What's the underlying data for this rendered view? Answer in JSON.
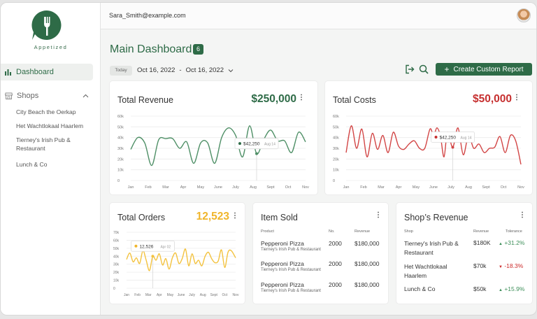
{
  "app": {
    "logo_text": "Appetized"
  },
  "user": {
    "email": "Sara_Smith@example.com"
  },
  "sidebar": {
    "dashboard_label": "Dashboard",
    "shops_label": "Shops",
    "shops": [
      "City Beach the Oerkap",
      "Het Wachtlokaal Haarlem",
      "Tierney's Irish Pub & Restaurant",
      "Lunch & Co"
    ]
  },
  "header": {
    "title": "Main Dashboard",
    "badge": "6",
    "today_label": "Today",
    "date_from": "Oct 16, 2022",
    "date_sep": "-",
    "date_to": "Oct 16, 2022",
    "create_label": "Create Custom Report"
  },
  "colors": {
    "brand": "#2e6b47",
    "revenue": "#4e8f66",
    "costs": "#d24545",
    "orders": "#f3c23e",
    "up": "#3e8f5a",
    "down": "#cc2b2b"
  },
  "cards": {
    "revenue": {
      "title": "Total Revenue",
      "value": "$250,000",
      "tooltip_value": "$42,250",
      "tooltip_date": "Aug 14"
    },
    "costs": {
      "title": "Total Costs",
      "value": "$50,000",
      "tooltip_value": "$42,250",
      "tooltip_date": "Aug 14"
    },
    "orders": {
      "title": "Total Orders",
      "value": "12,523",
      "tooltip_value": "12,526",
      "tooltip_date": "Apr 02"
    },
    "items": {
      "title": "Item Sold",
      "headers": {
        "product": "Product",
        "no": "No.",
        "revenue": "Revenue"
      },
      "rows": [
        {
          "product": "Pepperoni Pizza",
          "shop": "Tierney's Irish Pub & Restaurant",
          "no": "2000",
          "revenue": "$180,000"
        },
        {
          "product": "Pepperoni Pizza",
          "shop": "Tierney's Irish Pub & Restaurant",
          "no": "2000",
          "revenue": "$180,000"
        },
        {
          "product": "Pepperoni Pizza",
          "shop": "Tierney's Irish Pub & Restaurant",
          "no": "2000",
          "revenue": "$180,000"
        }
      ]
    },
    "shop_revenue": {
      "title": "Shop’s Revenue",
      "headers": {
        "shop": "Shop",
        "revenue": "Revenue",
        "tolerance": "Tolerance"
      },
      "rows": [
        {
          "shop": "Tierney's Irish Pub & Restaurant",
          "revenue": "$180K",
          "delta": "+31.2%",
          "dir": "up"
        },
        {
          "shop": "Het Wachtlokaal Haarlem",
          "revenue": "$70k",
          "delta": "-18.3%",
          "dir": "down"
        },
        {
          "shop": "Lunch & Co",
          "revenue": "$50k",
          "delta": "+15.9%",
          "dir": "up"
        }
      ]
    }
  },
  "chart_data": [
    {
      "type": "line",
      "title": "Total Revenue",
      "categories": [
        "Jan",
        "Feb",
        "Mar",
        "Apr",
        "May",
        "June",
        "July",
        "Aug",
        "Sept",
        "Oct",
        "Nov"
      ],
      "yticks": [
        "0",
        "10k",
        "20k",
        "30k",
        "40k",
        "50k",
        "60k"
      ],
      "ylim": [
        0,
        60000
      ],
      "x": [
        0,
        0.4,
        0.8,
        1.2,
        1.6,
        2,
        2.4,
        2.8,
        3.2,
        3.6,
        4,
        4.4,
        4.8,
        5.2,
        5.6,
        6,
        6.4,
        6.8,
        7.2,
        7.6,
        8,
        8.4,
        8.8,
        9.2,
        9.6,
        10
      ],
      "values": [
        29000,
        40000,
        35000,
        14000,
        38000,
        39000,
        39000,
        30000,
        36000,
        16000,
        35000,
        35000,
        16000,
        40000,
        49000,
        42000,
        22000,
        51000,
        25000,
        38000,
        47000,
        37000,
        37000,
        26000,
        45000,
        36000
      ]
    },
    {
      "type": "line",
      "title": "Total Costs",
      "categories": [
        "Jan",
        "Feb",
        "Mar",
        "Apr",
        "May",
        "June",
        "July",
        "Aug",
        "Sept",
        "Oct",
        "Nov"
      ],
      "yticks": [
        "0",
        "10k",
        "20k",
        "30k",
        "40k",
        "50k",
        "60k"
      ],
      "ylim": [
        0,
        60000
      ],
      "x": [
        0,
        0.3,
        0.6,
        0.9,
        1.2,
        1.5,
        1.8,
        2.1,
        2.4,
        2.7,
        3,
        3.3,
        3.6,
        3.9,
        4.2,
        4.5,
        4.8,
        5,
        5.2,
        5.4,
        5.6,
        5.8,
        6.1,
        6.4,
        6.7,
        7,
        7.3,
        7.6,
        7.9,
        8.2,
        8.5,
        8.8,
        9.1,
        9.4,
        9.7,
        10
      ],
      "values": [
        26000,
        51000,
        30000,
        48000,
        22000,
        44000,
        29000,
        42000,
        26000,
        45000,
        32000,
        29000,
        34000,
        37000,
        30000,
        30000,
        48000,
        42000,
        49000,
        41000,
        22000,
        45000,
        31000,
        49000,
        24000,
        42000,
        30000,
        34000,
        26000,
        30000,
        31000,
        41000,
        26000,
        42000,
        37000,
        15000
      ]
    },
    {
      "type": "line",
      "title": "Total Orders",
      "categories": [
        "Jan",
        "Feb",
        "Mar",
        "Apr",
        "May",
        "June",
        "July",
        "Aug",
        "Sept",
        "Oct",
        "Nov"
      ],
      "yticks": [
        "0",
        "10k",
        "20k",
        "30k",
        "40k",
        "50k",
        "60k",
        "70k"
      ],
      "ylim": [
        0,
        70000
      ],
      "x": [
        0,
        0.3,
        0.6,
        0.9,
        1.2,
        1.5,
        1.8,
        2.1,
        2.4,
        2.7,
        3,
        3.3,
        3.6,
        3.9,
        4.2,
        4.5,
        4.8,
        5.1,
        5.4,
        5.7,
        6,
        6.3,
        6.6,
        6.9,
        7.2,
        7.5,
        7.8,
        8.1,
        8.4,
        8.7,
        9,
        9.3,
        9.6,
        10
      ],
      "values": [
        36000,
        44000,
        33000,
        38000,
        31000,
        47000,
        35000,
        22000,
        40000,
        35000,
        43000,
        29000,
        37000,
        24000,
        38000,
        44000,
        31000,
        37000,
        49000,
        28000,
        43000,
        31000,
        35000,
        28000,
        40000,
        45000,
        37000,
        32000,
        34000,
        48000,
        26000,
        45000,
        47000,
        38000
      ]
    }
  ]
}
